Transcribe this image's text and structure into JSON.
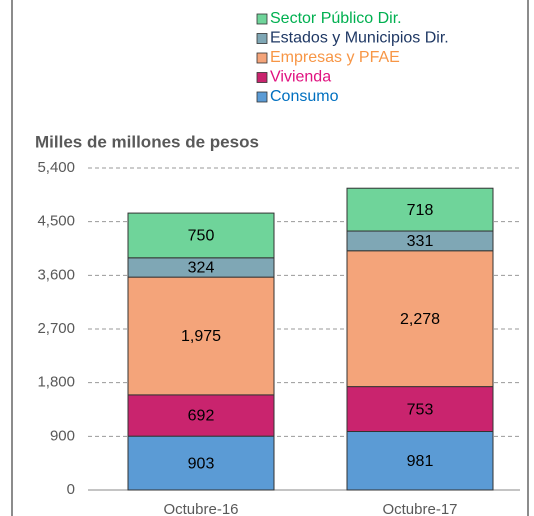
{
  "chart_data": {
    "type": "stacked_bar",
    "title": "Milles de millones de pesos",
    "categories": [
      "Octubre-16",
      "Octubre-17"
    ],
    "series": [
      {
        "name": "Consumo",
        "color": "#5b9bd5",
        "text_color": "#0070c0",
        "values": [
          903,
          981
        ]
      },
      {
        "name": "Vivienda",
        "color": "#c9246e",
        "text_color": "#e0117f",
        "values": [
          692,
          753
        ]
      },
      {
        "name": "Empresas y PFAE",
        "color": "#f4a47a",
        "text_color": "#f79646",
        "values": [
          1975,
          2278
        ],
        "value_labels": [
          "1,975",
          "2,278"
        ]
      },
      {
        "name": "Estados y Municipios Dir.",
        "color": "#7fa7b5",
        "text_color": "#1f3864",
        "values": [
          324,
          331
        ]
      },
      {
        "name": "Sector Público Dir.",
        "color": "#6fd49a",
        "text_color": "#00b050",
        "values": [
          750,
          718
        ]
      }
    ],
    "ylim": [
      0,
      5400
    ],
    "yticks": [
      0,
      900,
      {
        "value": 1800,
        "label": "1,800"
      },
      {
        "value": 2700,
        "label": "2,700"
      },
      {
        "value": 3600,
        "label": "3,600"
      },
      {
        "value": 4500,
        "label": "4,500"
      },
      {
        "value": 5400,
        "label": "5,400"
      }
    ],
    "grid": true
  }
}
